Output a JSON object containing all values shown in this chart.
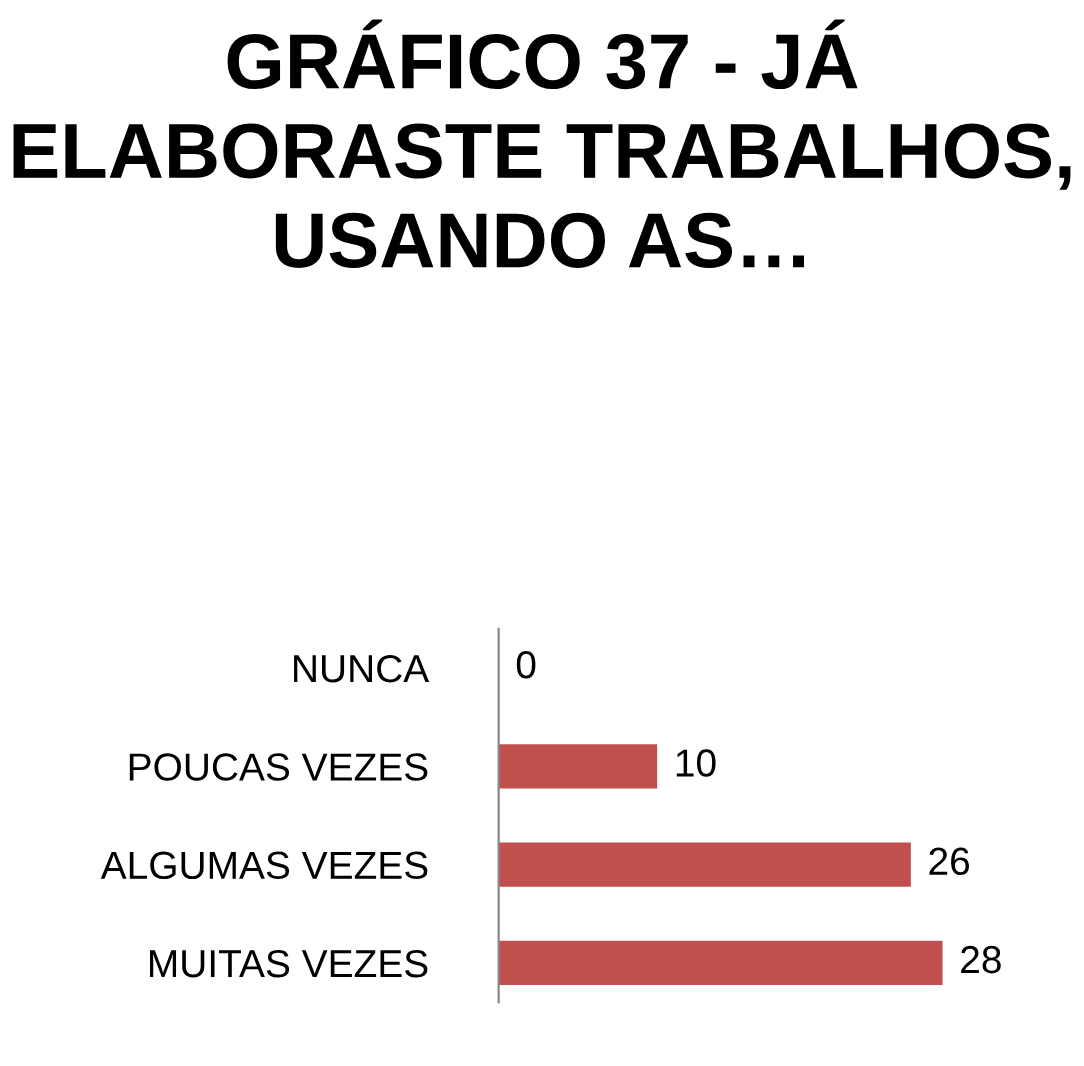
{
  "chart_data": {
    "type": "bar",
    "orientation": "horizontal",
    "title": "GRÁFICO 37 - JÁ ELABORASTE TRABALHOS, USANDO AS…",
    "categories": [
      "NUNCA",
      "POUCAS VEZES",
      "ALGUMAS VEZES",
      "MUITAS VEZES"
    ],
    "values": [
      0,
      10,
      26,
      28
    ],
    "color": "#c0504d",
    "data_labels": true,
    "grid": false,
    "legend": false
  }
}
